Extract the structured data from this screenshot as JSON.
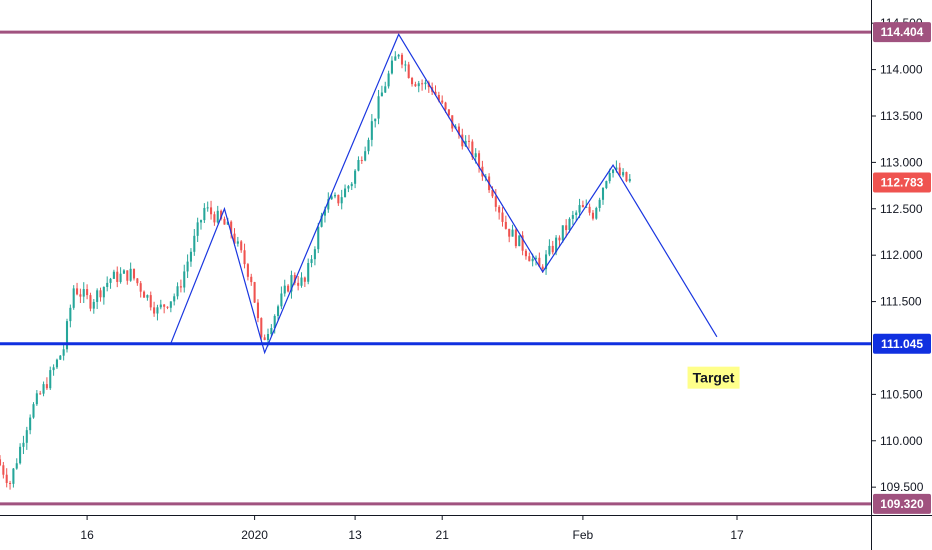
{
  "chart_data": {
    "type": "candlestick",
    "xlim": [
      0,
      130
    ],
    "ylim": [
      109.2,
      114.75
    ],
    "grid": false,
    "y_ticks": [
      {
        "value": 114.5,
        "label": "114.500"
      },
      {
        "value": 114.0,
        "label": "114.000"
      },
      {
        "value": 113.5,
        "label": "113.500"
      },
      {
        "value": 113.0,
        "label": "113.000"
      },
      {
        "value": 112.5,
        "label": "112.500"
      },
      {
        "value": 112.0,
        "label": "112.000"
      },
      {
        "value": 111.5,
        "label": "111.500"
      },
      {
        "value": 110.5,
        "label": "110.500"
      },
      {
        "value": 110.0,
        "label": "110.000"
      },
      {
        "value": 109.5,
        "label": "109.500"
      }
    ],
    "x_ticks": [
      {
        "x": 13,
        "label": "16"
      },
      {
        "x": 38,
        "label": "2020"
      },
      {
        "x": 53,
        "label": "13"
      },
      {
        "x": 66,
        "label": "21"
      },
      {
        "x": 87,
        "label": "Feb"
      },
      {
        "x": 110,
        "label": "17"
      }
    ],
    "levels": [
      {
        "name": "resistance",
        "value": 114.404,
        "label": "114.404",
        "color": "#a0527f",
        "width": 3
      },
      {
        "name": "support",
        "value": 111.045,
        "label": "111.045",
        "color": "#1030e0",
        "width": 3
      },
      {
        "name": "floor",
        "value": 109.32,
        "label": "109.320",
        "color": "#a0527f",
        "width": 3
      }
    ],
    "current_price": {
      "value": 112.783,
      "label": "112.783",
      "color": "#ef5350"
    },
    "pattern_path": [
      {
        "x": 25.5,
        "y": 111.05
      },
      {
        "x": 33.5,
        "y": 112.5
      },
      {
        "x": 39.5,
        "y": 110.95
      },
      {
        "x": 59.5,
        "y": 114.38
      },
      {
        "x": 81,
        "y": 111.82
      },
      {
        "x": 91.5,
        "y": 112.97
      },
      {
        "x": 107,
        "y": 111.12
      }
    ],
    "annotation": {
      "text": "Target",
      "x": 106.5,
      "y": 110.68,
      "background": "#ffff8a"
    },
    "anchors": [
      [
        0,
        109.8
      ],
      [
        2,
        109.55
      ],
      [
        5,
        110.3
      ],
      [
        8,
        110.7
      ],
      [
        10,
        111.0
      ],
      [
        11.5,
        111.65
      ],
      [
        14,
        111.5
      ],
      [
        17,
        111.75
      ],
      [
        20,
        111.8
      ],
      [
        24,
        111.4
      ],
      [
        27,
        111.6
      ],
      [
        31,
        112.5
      ],
      [
        33,
        112.4
      ],
      [
        35,
        112.25
      ],
      [
        38,
        111.75
      ],
      [
        39.5,
        111.05
      ],
      [
        42,
        111.45
      ],
      [
        44,
        111.75
      ],
      [
        46,
        111.7
      ],
      [
        49,
        112.55
      ],
      [
        51,
        112.6
      ],
      [
        53,
        112.8
      ],
      [
        55,
        113.2
      ],
      [
        58,
        113.85
      ],
      [
        60,
        114.2
      ],
      [
        62,
        113.9
      ],
      [
        65,
        113.8
      ],
      [
        68,
        113.4
      ],
      [
        71,
        113.1
      ],
      [
        74,
        112.7
      ],
      [
        76,
        112.3
      ],
      [
        79,
        112.05
      ],
      [
        81,
        111.85
      ],
      [
        84,
        112.2
      ],
      [
        87,
        112.5
      ],
      [
        89,
        112.45
      ],
      [
        91.5,
        112.95
      ],
      [
        94,
        112.8
      ]
    ],
    "candle_range": [
      0,
      94
    ],
    "colors": {
      "up": "#26a69a",
      "down": "#ef5350",
      "pattern": "#1a36e0"
    }
  }
}
